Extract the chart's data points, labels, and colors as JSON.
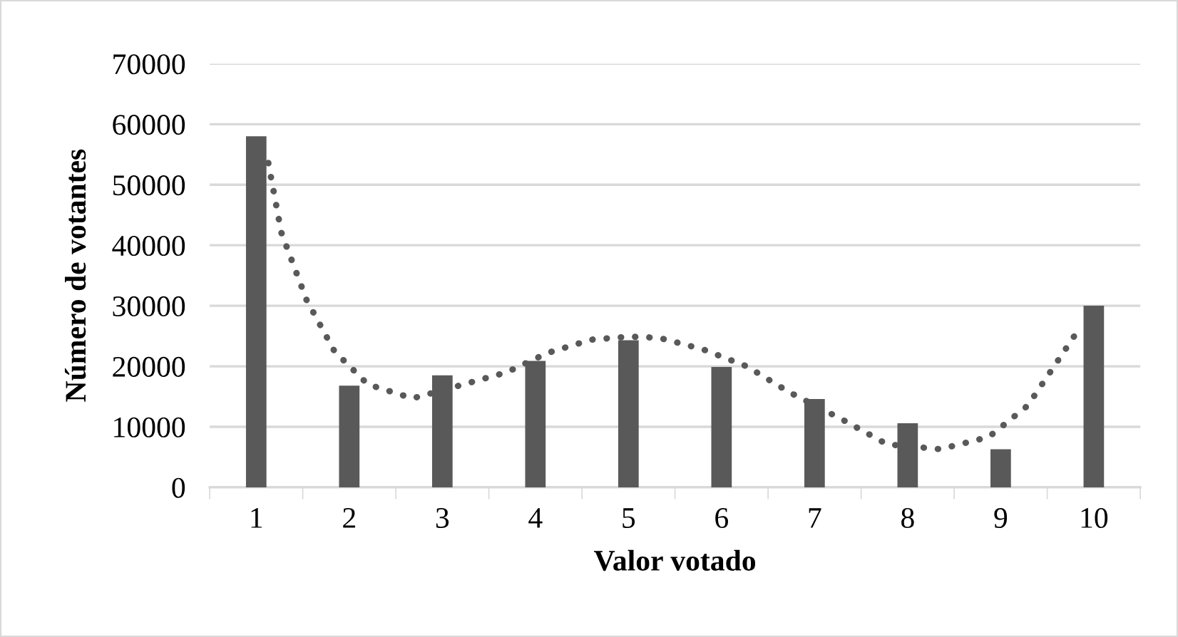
{
  "chart_data": {
    "type": "bar",
    "xlabel": "Valor votado",
    "ylabel": "Número de votantes",
    "x": [
      1,
      2,
      3,
      4,
      5,
      6,
      7,
      8,
      9,
      10
    ],
    "series": [
      {
        "color": "#595959",
        "values": [
          58000,
          16800,
          18500,
          20900,
          24300,
          19900,
          14600,
          10600,
          6300,
          30000
        ]
      },
      {
        "type": "line",
        "color": "#595959",
        "line_style": "dotted",
        "x": [
          1.13,
          1.27,
          1.54,
          1.84,
          2.2,
          2.68,
          3.18,
          3.69,
          4.13,
          4.6,
          5.02,
          5.33,
          5.8,
          6.27,
          6.73,
          7.31,
          7.78,
          8.35,
          8.87,
          9.29,
          9.6,
          9.86
        ],
        "values": [
          53600,
          42100,
          31000,
          22500,
          17000,
          14700,
          16800,
          19000,
          22200,
          24400,
          24900,
          24700,
          22800,
          20000,
          15700,
          11100,
          7100,
          6300,
          8300,
          13500,
          20600,
          26600
        ]
      }
    ],
    "xlim": [
      0.5,
      10.5
    ],
    "xticks": [
      {
        "value": 0.5,
        "label": null
      },
      1,
      {
        "value": 1.5,
        "label": null
      },
      2,
      {
        "value": 2.5,
        "label": null
      },
      3,
      {
        "value": 3.5,
        "label": null
      },
      4,
      {
        "value": 4.5,
        "label": null
      },
      5,
      {
        "value": 5.5,
        "label": null
      },
      6,
      {
        "value": 6.5,
        "label": null
      },
      7,
      {
        "value": 7.5,
        "label": null
      },
      8,
      {
        "value": 8.5,
        "label": null
      },
      9,
      {
        "value": 9.5,
        "label": null
      },
      10,
      {
        "value": 10.5,
        "label": null
      }
    ],
    "ylim": [
      0,
      70000
    ],
    "yticks": [
      0,
      10000,
      20000,
      30000,
      40000,
      50000,
      60000,
      70000
    ],
    "grid": "y"
  }
}
